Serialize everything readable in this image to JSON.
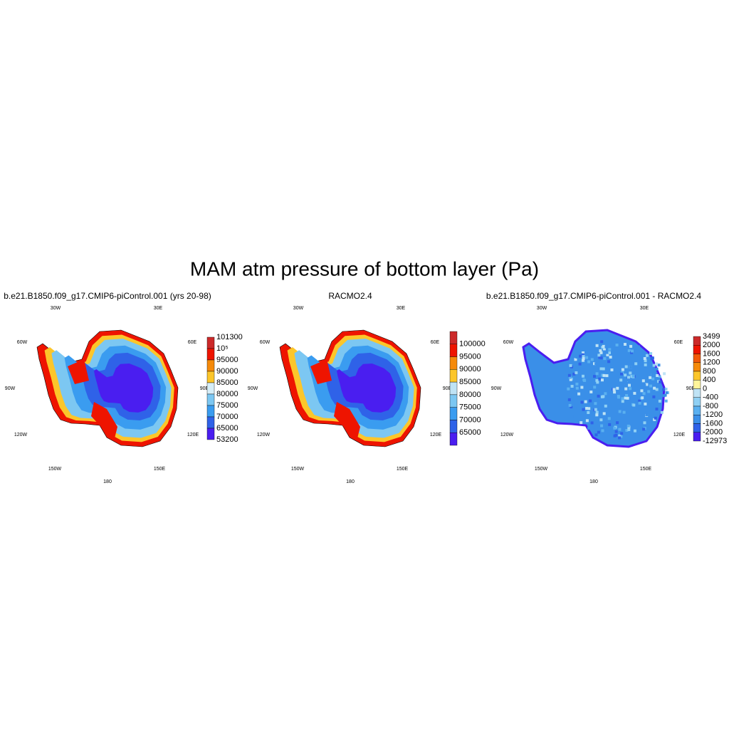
{
  "title": "MAM atm pressure of bottom layer (Pa)",
  "lon_labels": [
    "30W",
    "30E",
    "60W",
    "60E",
    "90W",
    "90E",
    "120W",
    "120E",
    "150W",
    "150E",
    "180"
  ],
  "panels": [
    {
      "title": "b.e21.B1850.f09_g17.CMIP6-piControl.001 (yrs 20-98)",
      "colorbar": {
        "labels": [
          101300,
          "10⁵",
          95000,
          90000,
          85000,
          80000,
          75000,
          70000,
          65000,
          53200
        ],
        "colors": [
          "#cc2a2a",
          "#ee1400",
          "#f58a0a",
          "#fcc62a",
          "#d6eef8",
          "#7cc7f2",
          "#3a9cf0",
          "#2f62e8",
          "#4a1ef0"
        ]
      }
    },
    {
      "title": "RACMO2.4",
      "colorbar": {
        "labels": [
          100000,
          95000,
          90000,
          85000,
          80000,
          75000,
          70000,
          65000
        ],
        "colors": [
          "#cc2a2a",
          "#ee1400",
          "#f58a0a",
          "#fcc62a",
          "#bfe3f5",
          "#7cc7f2",
          "#3a9cf0",
          "#2f62e8",
          "#4a1ef0"
        ]
      }
    },
    {
      "title": "b.e21.B1850.f09_g17.CMIP6-piControl.001 - RACMO2.4",
      "colorbar": {
        "labels": [
          3499,
          2000,
          1600,
          1200,
          800,
          400,
          0,
          -400,
          -800,
          -1200,
          -1600,
          -2000,
          -12973
        ],
        "colors": [
          "#cc2a2a",
          "#ee1400",
          "#f25a0a",
          "#f58a0a",
          "#fcc62a",
          "#fff59a",
          "#bfe3f5",
          "#8fd0f4",
          "#5ab0f0",
          "#3a8fe8",
          "#2f62e8",
          "#4a1ef0"
        ]
      }
    }
  ]
}
